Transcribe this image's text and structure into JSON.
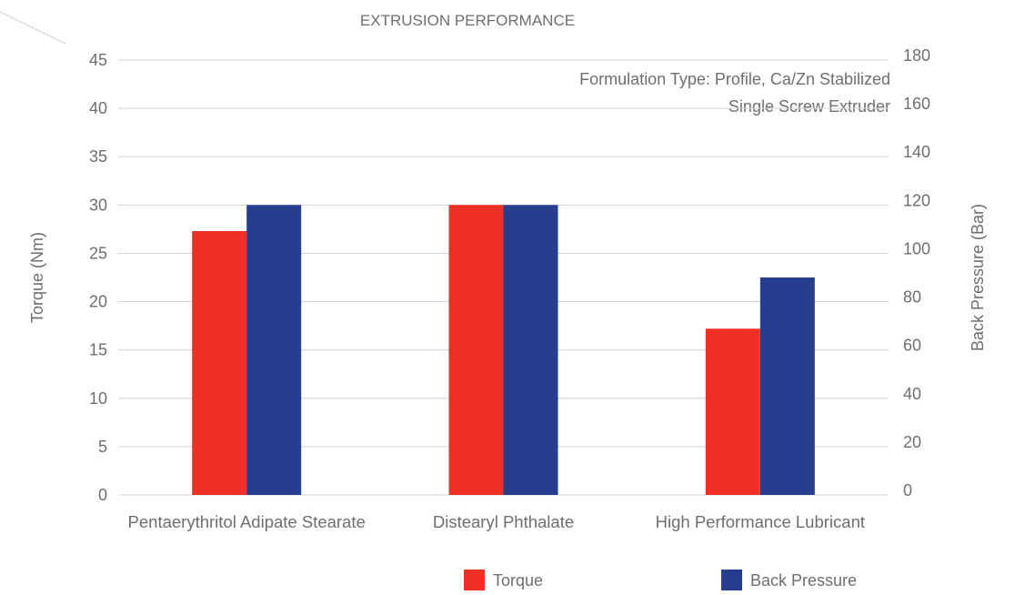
{
  "chart_data": {
    "type": "bar",
    "title": "EXTRUSION PERFORMANCE",
    "annotations": [
      "Formulation Type: Profile, Ca/Zn Stabilized",
      "Single Screw Extruder"
    ],
    "categories": [
      "Pentaerythritol Adipate Stearate",
      "Distearyl Phthalate",
      "High Performance Lubricant"
    ],
    "series": [
      {
        "name": "Torque",
        "axis": "left",
        "color": "#ee3124",
        "values": [
          27.3,
          30,
          17.2
        ]
      },
      {
        "name": "Back Pressure",
        "axis": "right",
        "color": "#253e8d",
        "values": [
          120,
          120,
          90
        ]
      }
    ],
    "ylabel": "Torque (Nm)",
    "ylim": [
      0,
      45
    ],
    "yticks": [
      "0",
      "5",
      "10",
      "15",
      "20",
      "25",
      "30",
      "35",
      "40",
      "45"
    ],
    "y2label": "Back Pressure (Bar)",
    "y2lim": [
      0,
      180
    ],
    "y2ticks": [
      "0",
      "20",
      "40",
      "60",
      "80",
      "100",
      "120",
      "140",
      "160",
      "180"
    ],
    "grid": true,
    "legend_position": "bottom-right"
  }
}
